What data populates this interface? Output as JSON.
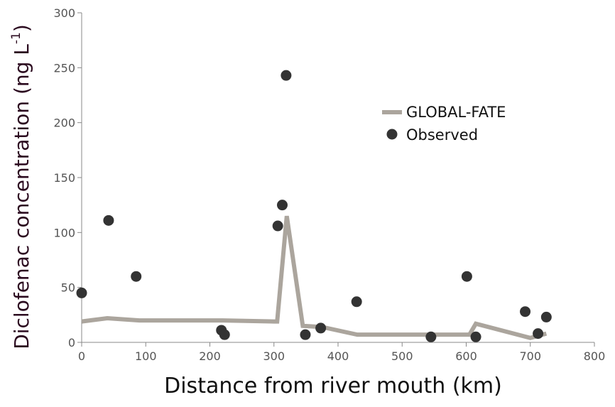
{
  "chart_data": {
    "type": "scatter",
    "title": "",
    "xlabel": "Distance from river mouth (km)",
    "ylabel": "Diclofenac concentration (ng L",
    "ylabel_superscript": "-1",
    "ylabel_suffix": ")",
    "xlim": [
      0,
      800
    ],
    "ylim": [
      0,
      300
    ],
    "xticks": [
      "0",
      "100",
      "200",
      "300",
      "400",
      "500",
      "600",
      "700",
      "800"
    ],
    "yticks": [
      "0",
      "50",
      "100",
      "150",
      "200",
      "250",
      "300"
    ],
    "grid": false,
    "legend_position": "top-right",
    "series": [
      {
        "name": "GLOBAL-FATE",
        "kind": "line",
        "color": "#aba59d",
        "points": [
          [
            0,
            19
          ],
          [
            40,
            22
          ],
          [
            90,
            20
          ],
          [
            220,
            20
          ],
          [
            300,
            19
          ],
          [
            305,
            19
          ],
          [
            320,
            115
          ],
          [
            345,
            15
          ],
          [
            375,
            14
          ],
          [
            430,
            7
          ],
          [
            550,
            7
          ],
          [
            605,
            7
          ],
          [
            615,
            17
          ],
          [
            700,
            4
          ],
          [
            725,
            8
          ]
        ]
      },
      {
        "name": "Observed",
        "kind": "scatter",
        "color": "#333333",
        "points": [
          [
            0,
            45
          ],
          [
            42,
            111
          ],
          [
            85,
            60
          ],
          [
            218,
            11
          ],
          [
            223,
            7
          ],
          [
            306,
            106
          ],
          [
            313,
            125
          ],
          [
            319,
            243
          ],
          [
            349,
            7
          ],
          [
            373,
            13
          ],
          [
            429,
            37
          ],
          [
            545,
            5
          ],
          [
            601,
            60
          ],
          [
            615,
            5
          ],
          [
            692,
            28
          ],
          [
            712,
            8
          ],
          [
            725,
            23
          ]
        ]
      }
    ]
  }
}
